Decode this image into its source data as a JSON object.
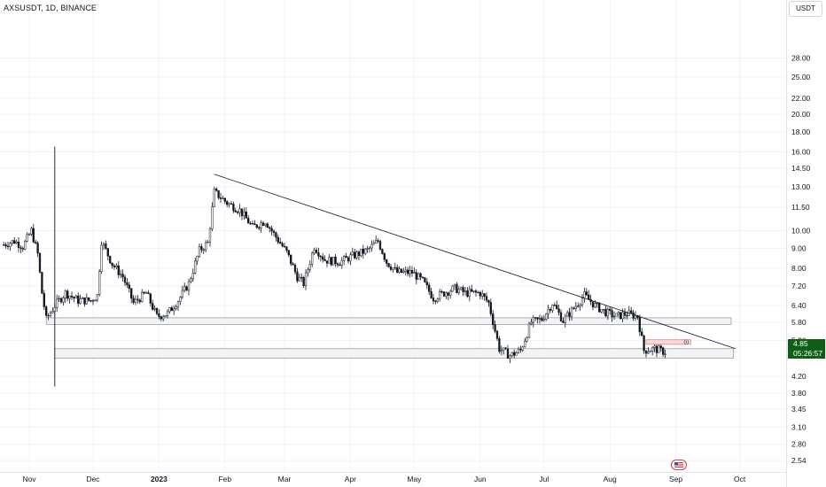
{
  "header": {
    "symbol_label": "AXSUSDT, 1D, BINANCE",
    "currency": "USDT"
  },
  "last_price": {
    "value": "4.85",
    "countdown": "05:26:57"
  },
  "colors": {
    "price_tag_bg": "#0d5f17",
    "candle": "#131722",
    "grid": "#f0f3fa",
    "zone_fill": "#f2f3f5",
    "marker_fill": "#fbd9d9"
  },
  "watermark_icon": "tradingview-flag-icon",
  "chart_data": {
    "type": "candlestick",
    "title": "AXSUSDT, 1D, BINANCE",
    "yscale": "log",
    "ylim": [
      2.35,
      35
    ],
    "y_ticks": [
      "28.00",
      "25.00",
      "22.00",
      "20.00",
      "18.00",
      "16.00",
      "14.50",
      "13.00",
      "11.50",
      "10.00",
      "9.00",
      "8.00",
      "7.20",
      "6.40",
      "5.80",
      "5.20",
      "4.20",
      "3.80",
      "3.45",
      "3.10",
      "2.80",
      "2.54"
    ],
    "x_ticks": [
      "Nov",
      "Dec",
      "2023",
      "Feb",
      "Mar",
      "Apr",
      "May",
      "Jun",
      "Jul",
      "Aug",
      "Sep",
      "Oct"
    ],
    "x_tick_dates": [
      "2022-11-01",
      "2022-12-01",
      "2023-01-01",
      "2023-02-01",
      "2023-03-01",
      "2023-04-01",
      "2023-05-01",
      "2023-06-01",
      "2023-07-01",
      "2023-08-01",
      "2023-09-01",
      "2023-10-01"
    ],
    "close_path": [
      [
        "2022-10-20",
        9.2
      ],
      [
        "2022-10-25",
        9.4
      ],
      [
        "2022-10-29",
        9.1
      ],
      [
        "2022-11-02",
        10.0
      ],
      [
        "2022-11-05",
        8.7
      ],
      [
        "2022-11-07",
        6.9
      ],
      [
        "2022-11-09",
        5.9
      ],
      [
        "2022-11-13",
        6.4
      ],
      [
        "2022-11-18",
        6.9
      ],
      [
        "2022-11-24",
        6.6
      ],
      [
        "2022-11-30",
        6.6
      ],
      [
        "2022-12-03",
        6.8
      ],
      [
        "2022-12-05",
        9.4
      ],
      [
        "2022-12-10",
        8.2
      ],
      [
        "2022-12-15",
        7.6
      ],
      [
        "2022-12-20",
        6.5
      ],
      [
        "2022-12-26",
        6.9
      ],
      [
        "2022-12-31",
        6.0
      ],
      [
        "2023-01-05",
        6.1
      ],
      [
        "2023-01-10",
        6.6
      ],
      [
        "2023-01-15",
        7.3
      ],
      [
        "2023-01-20",
        8.9
      ],
      [
        "2023-01-24",
        9.3
      ],
      [
        "2023-01-27",
        12.6
      ],
      [
        "2023-02-02",
        11.8
      ],
      [
        "2023-02-08",
        11.3
      ],
      [
        "2023-02-14",
        10.2
      ],
      [
        "2023-02-20",
        10.6
      ],
      [
        "2023-02-24",
        9.8
      ],
      [
        "2023-03-02",
        8.8
      ],
      [
        "2023-03-07",
        7.6
      ],
      [
        "2023-03-10",
        7.3
      ],
      [
        "2023-03-15",
        9.1
      ],
      [
        "2023-03-20",
        8.4
      ],
      [
        "2023-03-27",
        8.3
      ],
      [
        "2023-04-02",
        8.6
      ],
      [
        "2023-04-09",
        8.9
      ],
      [
        "2023-04-14",
        9.4
      ],
      [
        "2023-04-18",
        8.3
      ],
      [
        "2023-04-23",
        7.8
      ],
      [
        "2023-04-30",
        7.8
      ],
      [
        "2023-05-05",
        7.4
      ],
      [
        "2023-05-10",
        6.7
      ],
      [
        "2023-05-15",
        6.9
      ],
      [
        "2023-05-20",
        7.1
      ],
      [
        "2023-05-25",
        6.9
      ],
      [
        "2023-06-01",
        6.9
      ],
      [
        "2023-06-05",
        6.5
      ],
      [
        "2023-06-10",
        4.95
      ],
      [
        "2023-06-15",
        4.75
      ],
      [
        "2023-06-20",
        4.9
      ],
      [
        "2023-06-25",
        5.8
      ],
      [
        "2023-06-30",
        5.9
      ],
      [
        "2023-07-05",
        6.5
      ],
      [
        "2023-07-10",
        5.85
      ],
      [
        "2023-07-15",
        6.3
      ],
      [
        "2023-07-20",
        6.8
      ],
      [
        "2023-07-25",
        6.4
      ],
      [
        "2023-07-30",
        6.15
      ],
      [
        "2023-08-04",
        6.0
      ],
      [
        "2023-08-09",
        6.1
      ],
      [
        "2023-08-14",
        6.0
      ],
      [
        "2023-08-17",
        4.9
      ],
      [
        "2023-08-22",
        4.95
      ],
      [
        "2023-08-27",
        4.85
      ]
    ],
    "drawings": {
      "trendline": {
        "from": [
          "2023-01-27",
          14.0
        ],
        "to": [
          "2023-09-29",
          4.95
        ]
      },
      "zones": [
        {
          "name": "upper-support-zone",
          "from": "2022-11-09",
          "to": "2023-09-27",
          "low": 5.72,
          "high": 5.95
        },
        {
          "name": "lower-support-zone",
          "from": "2022-11-13",
          "to": "2023-09-28",
          "low": 4.68,
          "high": 4.95
        }
      ],
      "marker": {
        "from": "2023-08-18",
        "to": "2023-09-08",
        "low": 5.08,
        "high": 5.22
      },
      "vline": {
        "date": "2022-11-13",
        "low": 3.95,
        "high": 16.5
      }
    }
  }
}
